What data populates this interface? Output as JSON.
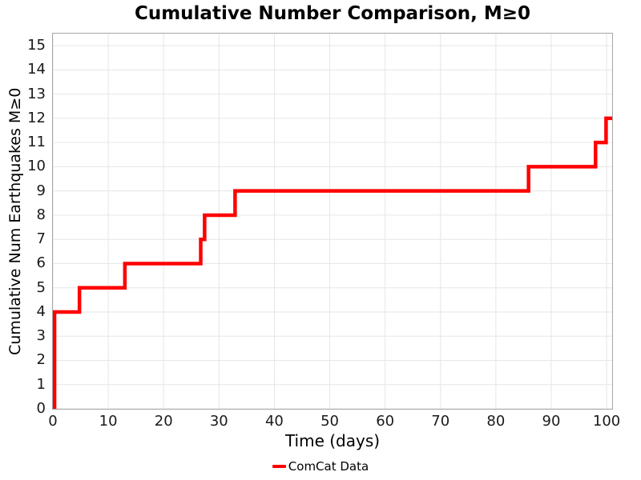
{
  "chart_data": {
    "type": "line",
    "subtype": "cumulative-step",
    "title": "Cumulative Number Comparison, M≥0",
    "xlabel": "Time (days)",
    "ylabel": "Cumulative Num Earthquakes M≥0",
    "xlim": [
      0,
      101
    ],
    "ylim": [
      0,
      15.5
    ],
    "x_ticks": [
      0,
      10,
      20,
      30,
      40,
      50,
      60,
      70,
      80,
      90,
      100
    ],
    "y_ticks": [
      0,
      1,
      2,
      3,
      4,
      5,
      6,
      7,
      8,
      9,
      10,
      11,
      12,
      13,
      14,
      15
    ],
    "grid": true,
    "grid_color": "#e6e6e6",
    "spine_color": "#a6a6a6",
    "background_color": "#ffffff",
    "legend_position": "below-center",
    "series": [
      {
        "name": "ComCat Data",
        "color": "#ff0000",
        "line_width": 4.5,
        "start": [
          0.3,
          0
        ],
        "steps": [
          [
            0.3,
            4
          ],
          [
            4.8,
            5
          ],
          [
            13.0,
            6
          ],
          [
            26.7,
            7
          ],
          [
            27.4,
            8
          ],
          [
            32.9,
            9
          ],
          [
            85.9,
            10
          ],
          [
            98.0,
            11
          ],
          [
            99.9,
            12
          ]
        ],
        "end_x": 101,
        "final_value": 12
      }
    ]
  }
}
